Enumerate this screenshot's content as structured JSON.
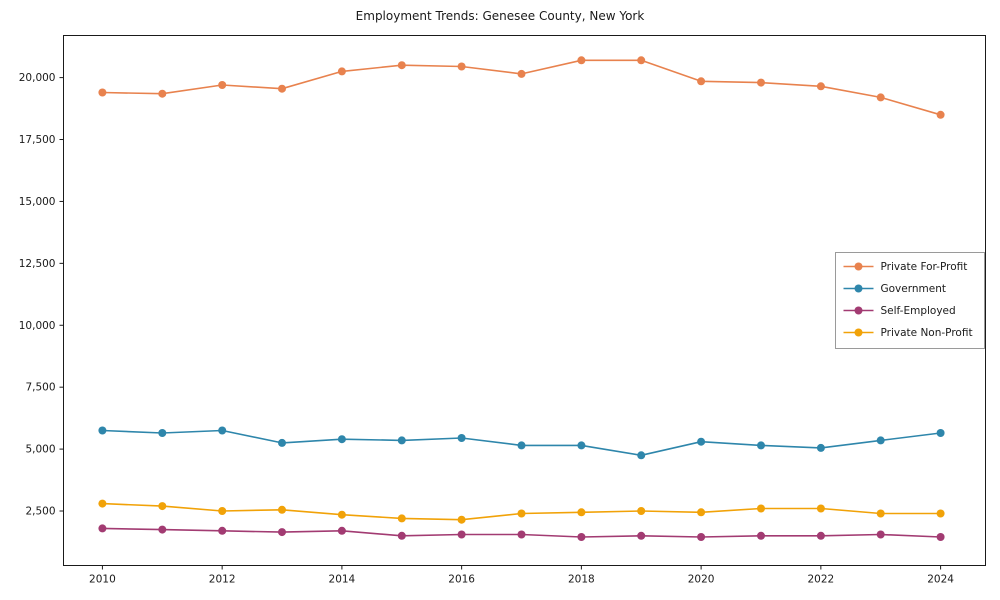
{
  "chart_data": {
    "type": "line",
    "title": "Employment Trends: Genesee County, New York",
    "xlabel": "",
    "ylabel": "",
    "x": [
      2010,
      2011,
      2012,
      2013,
      2014,
      2015,
      2016,
      2017,
      2018,
      2019,
      2020,
      2021,
      2022,
      2023,
      2024
    ],
    "xticks": [
      2010,
      2012,
      2014,
      2016,
      2018,
      2020,
      2022,
      2024
    ],
    "yticks": [
      2500,
      5000,
      7500,
      10000,
      12500,
      15000,
      17500,
      20000
    ],
    "xlim": [
      2009.35,
      2024.75
    ],
    "ylim": [
      300,
      21700
    ],
    "grid": false,
    "legend_position": "center-right",
    "marker": "circle",
    "series": [
      {
        "name": "Private For-Profit",
        "color": "#e8824e",
        "values": [
          19400,
          19350,
          19700,
          19550,
          20250,
          20500,
          20450,
          20150,
          20700,
          20700,
          19850,
          19800,
          19650,
          19200,
          18500
        ]
      },
      {
        "name": "Government",
        "color": "#2e86ab",
        "values": [
          5750,
          5650,
          5750,
          5250,
          5400,
          5350,
          5450,
          5150,
          5150,
          4750,
          5300,
          5150,
          5050,
          5350,
          5650
        ]
      },
      {
        "name": "Self-Employed",
        "color": "#a23b72",
        "values": [
          1800,
          1750,
          1700,
          1650,
          1700,
          1500,
          1550,
          1550,
          1450,
          1500,
          1450,
          1500,
          1500,
          1550,
          1450
        ]
      },
      {
        "name": "Private Non-Profit",
        "color": "#f1a208",
        "values": [
          2800,
          2700,
          2500,
          2550,
          2350,
          2200,
          2150,
          2400,
          2450,
          2500,
          2450,
          2600,
          2600,
          2400,
          2400
        ]
      }
    ]
  }
}
